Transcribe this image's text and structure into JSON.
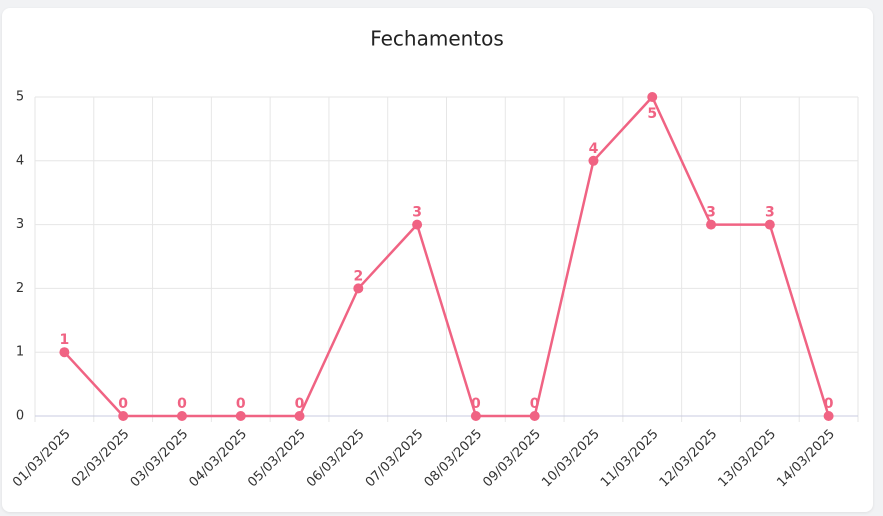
{
  "chart_data": {
    "type": "line",
    "title": "Fechamentos",
    "categories": [
      "01/03/2025",
      "02/03/2025",
      "03/03/2025",
      "04/03/2025",
      "05/03/2025",
      "06/03/2025",
      "07/03/2025",
      "08/03/2025",
      "09/03/2025",
      "10/03/2025",
      "11/03/2025",
      "12/03/2025",
      "13/03/2025",
      "14/03/2025"
    ],
    "values": [
      1,
      0,
      0,
      0,
      0,
      2,
      3,
      0,
      0,
      4,
      5,
      3,
      3,
      0
    ],
    "color": "#f06383",
    "ylim": [
      0,
      5
    ],
    "yticks": [
      0,
      1,
      2,
      3,
      4,
      5
    ],
    "grid": true,
    "data_labels": true
  }
}
